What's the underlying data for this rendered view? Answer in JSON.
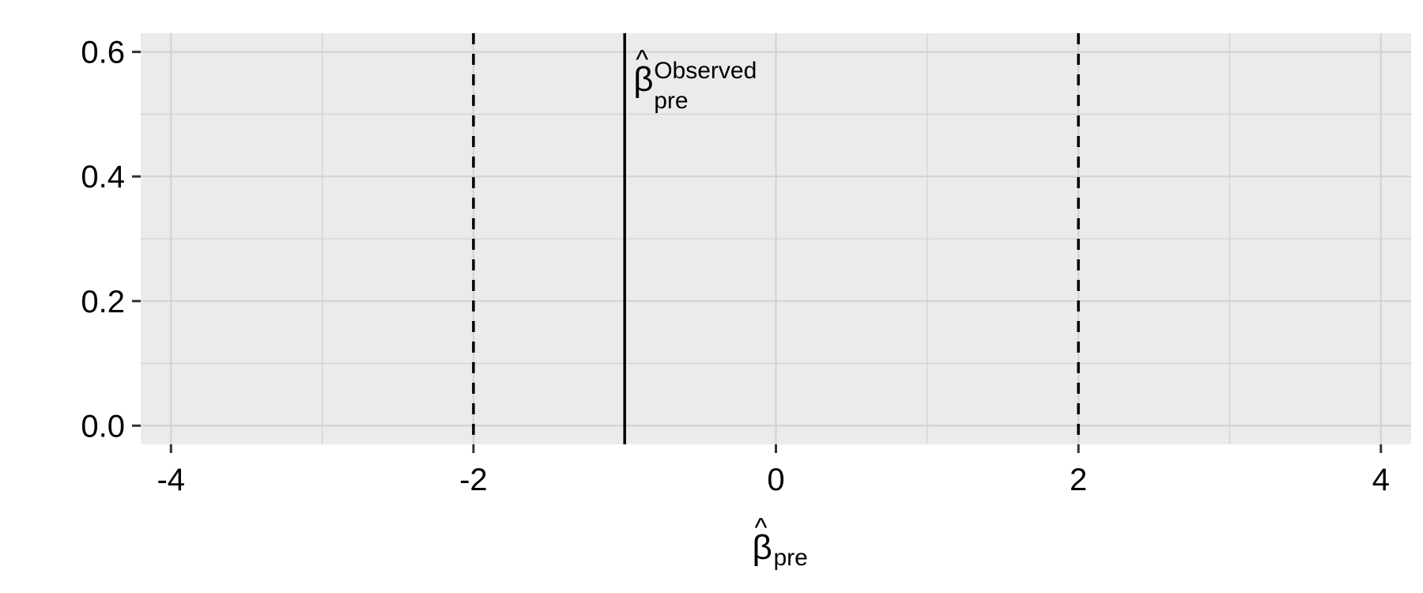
{
  "chart_data": {
    "type": "line",
    "title": "",
    "xlabel": {
      "base": "β",
      "accent": "^",
      "subscript": "pre"
    },
    "ylabel": "",
    "xlim": [
      -4.2,
      4.2
    ],
    "ylim": [
      -0.03,
      0.63
    ],
    "x_ticks": [
      -4,
      -2,
      0,
      2,
      4
    ],
    "x_tick_labels": [
      "-4",
      "-2",
      "0",
      "2",
      "4"
    ],
    "y_ticks": [
      0.0,
      0.2,
      0.4,
      0.6
    ],
    "y_tick_labels": [
      "0.0",
      "0.2",
      "0.4",
      "0.6"
    ],
    "grid": true,
    "panel_background": "#EBEBEB",
    "grid_color": "#D3D3D3",
    "vlines": [
      {
        "x": -2,
        "style": "dashed",
        "color": "#000000"
      },
      {
        "x": -1,
        "style": "solid",
        "color": "#000000"
      },
      {
        "x": 2,
        "style": "dashed",
        "color": "#000000"
      }
    ],
    "annotations": [
      {
        "x": -1,
        "y": 0.55,
        "base": "β",
        "accent": "^",
        "superscript": "Observed",
        "subscript": "pre"
      }
    ]
  }
}
